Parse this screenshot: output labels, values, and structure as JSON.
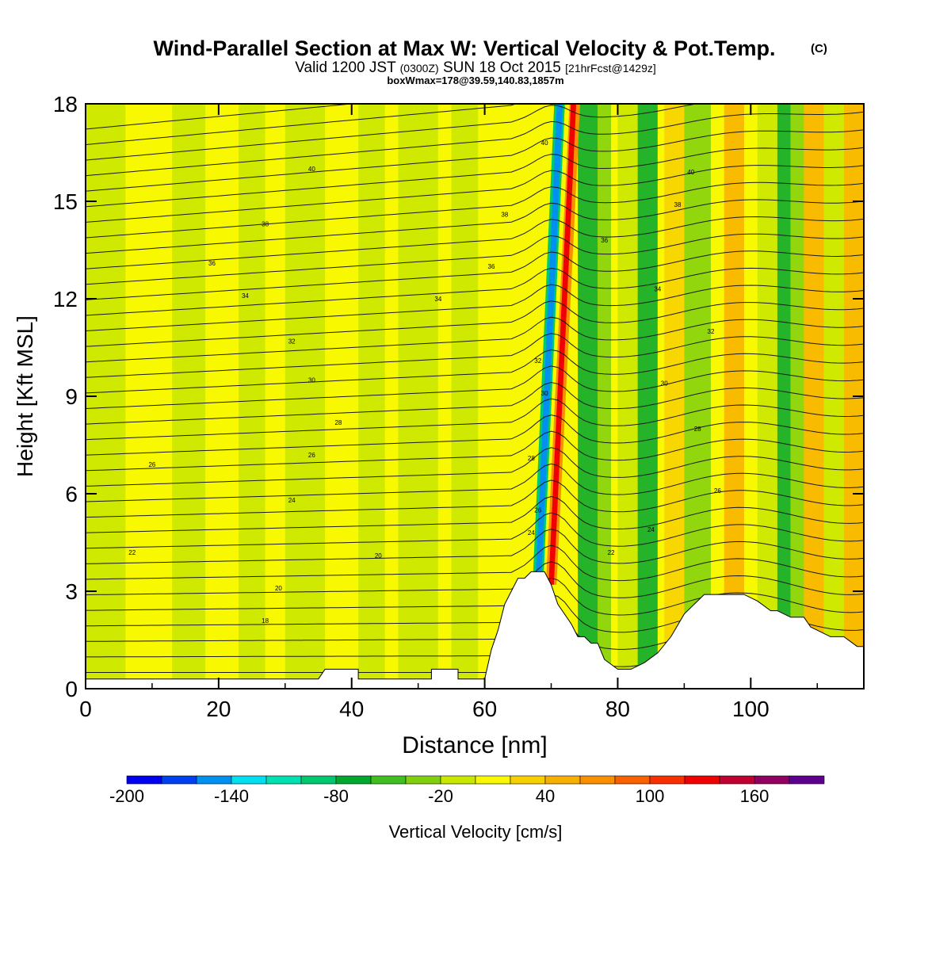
{
  "chart_data": {
    "type": "heatmap",
    "title": "Wind-Parallel Section at Max W: Vertical Velocity & Pot.Temp.",
    "title_mark": "(C)",
    "subtitle_parts": [
      "Valid 1200 JST ",
      "(0300Z)",
      " SUN 18 Oct 2015 ",
      "[21hrFcst@1429z]"
    ],
    "subtitle2": "boxWmax=178@39.59,140.83,1857m",
    "xlabel": "Distance [nm]",
    "ylabel": "Height [Kft MSL]",
    "xlim": [
      0,
      117
    ],
    "ylim": [
      0,
      18
    ],
    "x_ticks": [
      0,
      20,
      40,
      60,
      80,
      100
    ],
    "y_ticks": [
      0,
      3,
      6,
      9,
      12,
      15,
      18
    ],
    "colorbar": {
      "label": "Vertical Velocity [cm/s]",
      "min": -200,
      "max": 200,
      "tick_labels": [
        -200,
        -140,
        -80,
        -20,
        40,
        100,
        160
      ],
      "colors": [
        "#0000f0",
        "#0040f0",
        "#0090f0",
        "#00e0f0",
        "#00e0b0",
        "#00c870",
        "#00a830",
        "#40c020",
        "#80d010",
        "#c8e800",
        "#f8f800",
        "#f8d000",
        "#f8b000",
        "#f89000",
        "#f86000",
        "#f83000",
        "#f00000",
        "#c00030",
        "#900060",
        "#600090"
      ]
    },
    "theta_contour_labels": [
      {
        "text": "40",
        "x": 34,
        "y": 16.0
      },
      {
        "text": "38",
        "x": 27,
        "y": 14.3
      },
      {
        "text": "36",
        "x": 19,
        "y": 13.1
      },
      {
        "text": "34",
        "x": 24,
        "y": 12.1
      },
      {
        "text": "32",
        "x": 31,
        "y": 10.7
      },
      {
        "text": "30",
        "x": 34,
        "y": 9.5
      },
      {
        "text": "28",
        "x": 38,
        "y": 8.2
      },
      {
        "text": "26",
        "x": 34,
        "y": 7.2
      },
      {
        "text": "26",
        "x": 10,
        "y": 6.9
      },
      {
        "text": "24",
        "x": 31,
        "y": 5.8
      },
      {
        "text": "22",
        "x": 7,
        "y": 4.2
      },
      {
        "text": "20",
        "x": 44,
        "y": 4.1
      },
      {
        "text": "20",
        "x": 29,
        "y": 3.1
      },
      {
        "text": "18",
        "x": 27,
        "y": 2.1
      },
      {
        "text": "38",
        "x": 63,
        "y": 14.6
      },
      {
        "text": "36",
        "x": 61,
        "y": 13.0
      },
      {
        "text": "34",
        "x": 53,
        "y": 12.0
      },
      {
        "text": "40",
        "x": 69,
        "y": 16.8
      },
      {
        "text": "32",
        "x": 68,
        "y": 10.1
      },
      {
        "text": "30",
        "x": 69,
        "y": 9.1
      },
      {
        "text": "28",
        "x": 67,
        "y": 7.1
      },
      {
        "text": "26",
        "x": 68,
        "y": 5.5
      },
      {
        "text": "24",
        "x": 67,
        "y": 4.8
      },
      {
        "text": "40",
        "x": 91,
        "y": 15.9
      },
      {
        "text": "38",
        "x": 89,
        "y": 14.9
      },
      {
        "text": "36",
        "x": 78,
        "y": 13.8
      },
      {
        "text": "34",
        "x": 86,
        "y": 12.3
      },
      {
        "text": "32",
        "x": 94,
        "y": 11.0
      },
      {
        "text": "30",
        "x": 87,
        "y": 9.4
      },
      {
        "text": "28",
        "x": 92,
        "y": 8.0
      },
      {
        "text": "26",
        "x": 95,
        "y": 6.1
      },
      {
        "text": "24",
        "x": 85,
        "y": 4.9
      },
      {
        "text": "22",
        "x": 79,
        "y": 4.2
      }
    ],
    "grid": false
  }
}
